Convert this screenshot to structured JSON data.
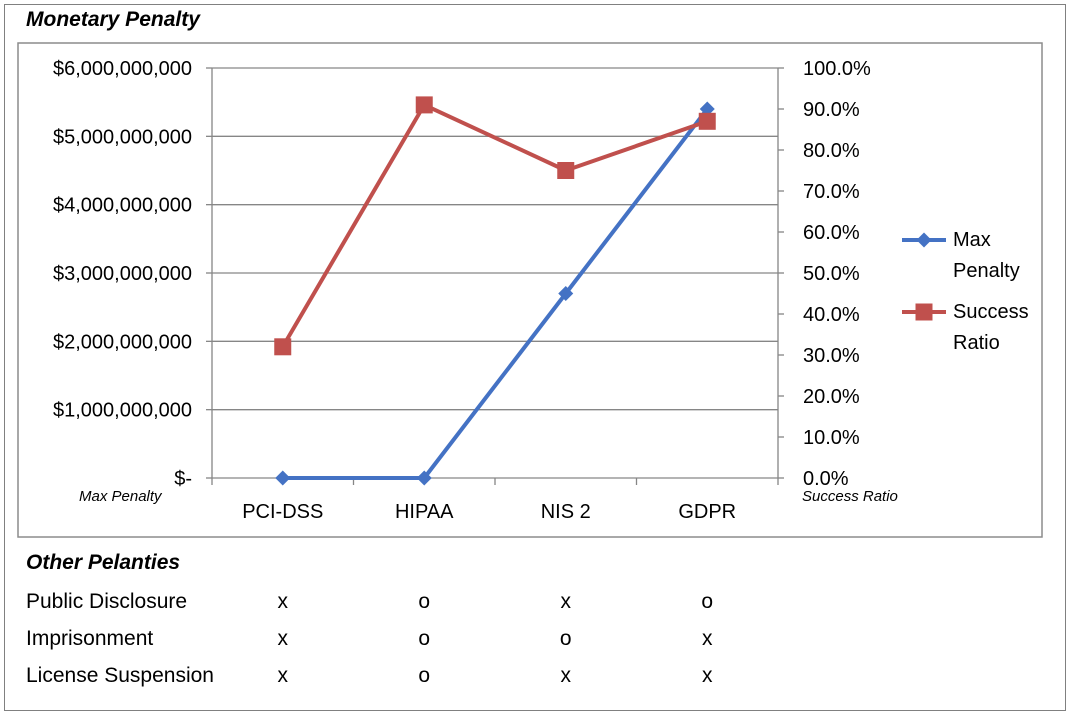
{
  "chart_data": {
    "type": "line",
    "title": "Monetary Penalty",
    "categories": [
      "PCI-DSS",
      "HIPAA",
      "NIS 2",
      "GDPR"
    ],
    "series": [
      {
        "name": "Max Penalty",
        "axis": "left",
        "color": "#4472C4",
        "marker": "diamond",
        "values": [
          0,
          0,
          2700000000,
          5400000000
        ]
      },
      {
        "name": "Success Ratio",
        "axis": "right",
        "color": "#C0504D",
        "marker": "square",
        "values": [
          0.32,
          0.91,
          0.75,
          0.87
        ]
      }
    ],
    "y_left": {
      "label": "Max Penalty",
      "min": 0,
      "max": 6000000000,
      "step": 1000000000,
      "ticks": [
        "$-",
        "$1,000,000,000",
        "$2,000,000,000",
        "$3,000,000,000",
        "$4,000,000,000",
        "$5,000,000,000",
        "$6,000,000,000"
      ]
    },
    "y_right": {
      "label": "Success Ratio",
      "min": 0,
      "max": 1,
      "step": 0.1,
      "ticks": [
        "0.0%",
        "10.0%",
        "20.0%",
        "30.0%",
        "40.0%",
        "50.0%",
        "60.0%",
        "70.0%",
        "80.0%",
        "90.0%",
        "100.0%"
      ]
    },
    "grid": true,
    "legend_position": "right",
    "legend": [
      {
        "line1": "Max",
        "line2": "Penalty"
      },
      {
        "line1": "Success",
        "line2": "Ratio"
      }
    ]
  },
  "other_penalties": {
    "title": "Other Pelanties",
    "rows": [
      {
        "label": "Public Disclosure",
        "values": [
          "x",
          "o",
          "x",
          "o"
        ]
      },
      {
        "label": "Imprisonment",
        "values": [
          "x",
          "o",
          "o",
          "x"
        ]
      },
      {
        "label": "License Suspension",
        "values": [
          "x",
          "o",
          "x",
          "x"
        ]
      }
    ]
  }
}
